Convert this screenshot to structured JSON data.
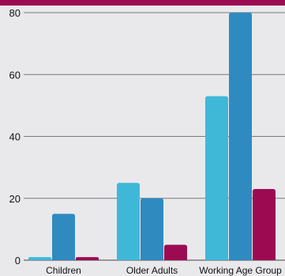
{
  "theme": {
    "background": "#e9e9ec",
    "top_band": "#9c0b52",
    "grid": "#7a7a7a"
  },
  "chart_data": {
    "type": "bar",
    "categories": [
      "Children",
      "Older Adults",
      "Working Age Group"
    ],
    "series": [
      {
        "values": [
          1,
          25,
          53
        ],
        "color": "#3fb8d8"
      },
      {
        "values": [
          15,
          20,
          80
        ],
        "color": "#2f8ac0"
      },
      {
        "values": [
          1,
          5,
          23
        ],
        "color": "#9c0b52"
      }
    ],
    "yticks": [
      0,
      20,
      40,
      60,
      80
    ],
    "ylim": [
      0,
      80
    ],
    "grid": true,
    "title": "",
    "xlabel": "",
    "ylabel": ""
  }
}
